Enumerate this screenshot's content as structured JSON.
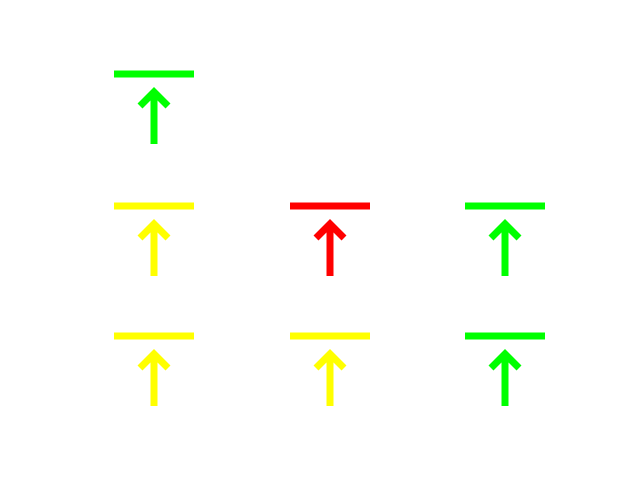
{
  "colors": {
    "green": "#00ff00",
    "yellow": "#ffff00",
    "red": "#ff0000"
  },
  "grid": {
    "rows": 3,
    "columns": 3
  },
  "icons": [
    {
      "name": "move-to-top-icon",
      "row": 1,
      "column": 1,
      "color": "green"
    },
    {
      "name": "move-to-top-icon",
      "row": 2,
      "column": 1,
      "color": "yellow"
    },
    {
      "name": "move-to-top-icon",
      "row": 2,
      "column": 2,
      "color": "red"
    },
    {
      "name": "move-to-top-icon",
      "row": 2,
      "column": 3,
      "color": "green"
    },
    {
      "name": "move-to-top-icon",
      "row": 3,
      "column": 1,
      "color": "yellow"
    },
    {
      "name": "move-to-top-icon",
      "row": 3,
      "column": 2,
      "color": "yellow"
    },
    {
      "name": "move-to-top-icon",
      "row": 3,
      "column": 3,
      "color": "green"
    }
  ]
}
